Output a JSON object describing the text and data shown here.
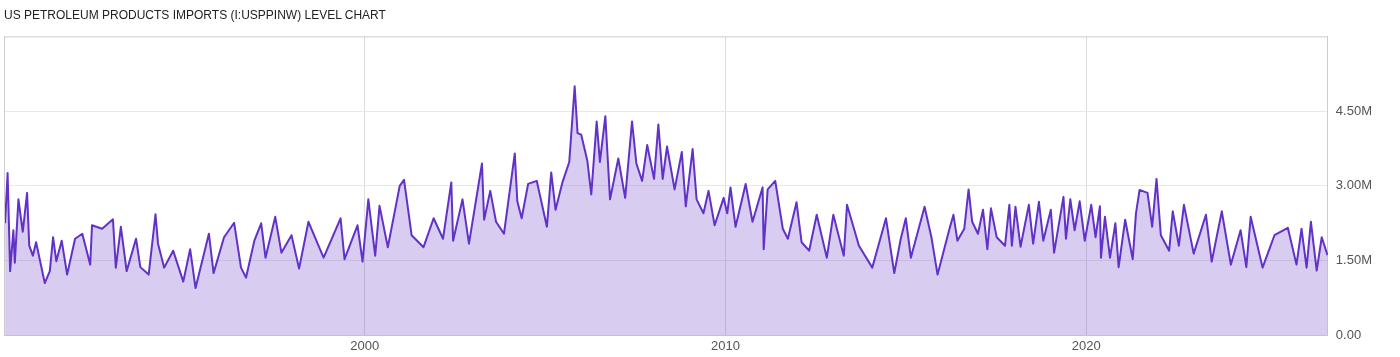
{
  "chart_data": {
    "type": "area",
    "title": "US PETROLEUM PRODUCTS IMPORTS (I:USPPINW) LEVEL CHART",
    "xlim": [
      1990,
      2026.7
    ],
    "xticks": [
      2000,
      2010,
      2020
    ],
    "ylim": [
      0,
      6.0
    ],
    "yticks": [
      {
        "value": 0,
        "label": "0.00"
      },
      {
        "value": 1.5,
        "label": "1.50M"
      },
      {
        "value": 3.0,
        "label": "3.00M"
      },
      {
        "value": 4.5,
        "label": "4.50M"
      }
    ],
    "grid": true,
    "legend": false,
    "marker": "none",
    "line_style": "solid",
    "series": [
      {
        "color": "#6232c8",
        "x": [
          1990.03,
          1990.1,
          1990.17,
          1990.26,
          1990.3,
          1990.4,
          1990.52,
          1990.64,
          1990.7,
          1990.8,
          1990.89,
          1991.13,
          1991.27,
          1991.36,
          1991.45,
          1991.6,
          1991.75,
          1991.97,
          1992.17,
          1992.39,
          1992.44,
          1992.72,
          1993.02,
          1993.1,
          1993.24,
          1993.4,
          1993.66,
          1993.78,
          1994.01,
          1994.2,
          1994.27,
          1994.44,
          1994.69,
          1994.97,
          1995.16,
          1995.31,
          1995.68,
          1995.81,
          1996.1,
          1996.38,
          1996.57,
          1996.71,
          1996.94,
          1997.13,
          1997.25,
          1997.52,
          1997.69,
          1997.97,
          1998.18,
          1998.44,
          1998.86,
          1999.33,
          1999.44,
          1999.8,
          1999.94,
          2000.1,
          2000.29,
          2000.41,
          2000.64,
          2000.97,
          2001.09,
          2001.3,
          2001.63,
          2001.91,
          2002.17,
          2002.4,
          2002.45,
          2002.71,
          2002.89,
          2003.25,
          2003.31,
          2003.48,
          2003.64,
          2003.86,
          2004.16,
          2004.23,
          2004.35,
          2004.53,
          2004.77,
          2005.05,
          2005.17,
          2005.29,
          2005.48,
          2005.67,
          2005.82,
          2005.9,
          2006.0,
          2006.17,
          2006.28,
          2006.43,
          2006.52,
          2006.67,
          2006.8,
          2007.03,
          2007.22,
          2007.41,
          2007.53,
          2007.69,
          2007.83,
          2008.02,
          2008.14,
          2008.26,
          2008.38,
          2008.59,
          2008.79,
          2008.9,
          2009.09,
          2009.2,
          2009.39,
          2009.53,
          2009.7,
          2009.95,
          2010.05,
          2010.14,
          2010.28,
          2010.56,
          2010.75,
          2011.03,
          2011.06,
          2011.17,
          2011.38,
          2011.59,
          2011.73,
          2011.97,
          2012.11,
          2012.32,
          2012.53,
          2012.81,
          2012.99,
          2013.28,
          2013.37,
          2013.7,
          2014.07,
          2014.45,
          2014.68,
          2014.86,
          2015.0,
          2015.14,
          2015.52,
          2015.71,
          2015.88,
          2016.2,
          2016.32,
          2016.43,
          2016.62,
          2016.74,
          2016.84,
          2017.0,
          2017.14,
          2017.26,
          2017.36,
          2017.52,
          2017.75,
          2017.87,
          2017.94,
          2018.04,
          2018.18,
          2018.41,
          2018.53,
          2018.69,
          2018.81,
          2019.02,
          2019.11,
          2019.37,
          2019.44,
          2019.56,
          2019.68,
          2019.82,
          2019.96,
          2020.14,
          2020.26,
          2020.38,
          2020.41,
          2020.52,
          2020.66,
          2020.81,
          2020.9,
          2021.08,
          2021.29,
          2021.38,
          2021.48,
          2021.7,
          2021.83,
          2021.95,
          2022.07,
          2022.3,
          2022.4,
          2022.57,
          2022.71,
          2022.98,
          2023.32,
          2023.48,
          2023.76,
          2024.01,
          2024.28,
          2024.44,
          2024.56,
          2024.89,
          2025.22,
          2025.59,
          2025.83,
          2025.97,
          2026.11,
          2026.23,
          2026.39,
          2026.53,
          2026.69
        ],
        "values": [
          2.25,
          3.26,
          1.29,
          2.11,
          1.46,
          2.73,
          2.08,
          2.86,
          1.8,
          1.6,
          1.87,
          1.05,
          1.29,
          1.97,
          1.49,
          1.9,
          1.22,
          1.94,
          2.04,
          1.42,
          2.21,
          2.14,
          2.33,
          1.36,
          2.18,
          1.29,
          1.94,
          1.37,
          1.22,
          2.43,
          1.84,
          1.36,
          1.7,
          1.08,
          1.73,
          0.95,
          2.04,
          1.25,
          1.97,
          2.26,
          1.36,
          1.16,
          1.9,
          2.25,
          1.56,
          2.38,
          1.66,
          2.01,
          1.34,
          2.28,
          1.56,
          2.35,
          1.53,
          2.21,
          1.48,
          2.73,
          1.6,
          2.6,
          1.77,
          3.0,
          3.12,
          2.01,
          1.77,
          2.35,
          1.94,
          3.07,
          1.9,
          2.73,
          1.84,
          3.45,
          2.32,
          2.9,
          2.28,
          2.04,
          3.65,
          2.69,
          2.35,
          3.04,
          3.1,
          2.18,
          3.27,
          2.52,
          3.07,
          3.48,
          5.0,
          4.06,
          4.03,
          3.51,
          2.83,
          4.29,
          3.48,
          4.4,
          2.73,
          3.55,
          2.76,
          4.29,
          3.45,
          3.1,
          3.82,
          3.14,
          4.23,
          3.14,
          3.79,
          2.93,
          3.68,
          2.59,
          3.74,
          2.73,
          2.45,
          2.9,
          2.21,
          2.76,
          2.45,
          2.97,
          2.18,
          3.04,
          2.28,
          2.97,
          1.73,
          2.93,
          3.1,
          2.14,
          1.94,
          2.67,
          1.87,
          1.7,
          2.42,
          1.56,
          2.42,
          1.6,
          2.62,
          1.8,
          1.36,
          2.35,
          1.25,
          1.94,
          2.35,
          1.56,
          2.58,
          1.97,
          1.22,
          2.11,
          2.42,
          1.9,
          2.14,
          2.93,
          2.28,
          2.04,
          2.52,
          1.73,
          2.55,
          1.97,
          1.8,
          2.62,
          1.8,
          2.58,
          1.78,
          2.62,
          1.84,
          2.68,
          1.9,
          2.52,
          1.66,
          2.78,
          1.94,
          2.73,
          2.11,
          2.69,
          1.9,
          2.62,
          1.97,
          2.59,
          1.56,
          2.38,
          1.56,
          2.25,
          1.37,
          2.32,
          1.53,
          2.45,
          2.92,
          2.86,
          2.18,
          3.14,
          2.01,
          1.7,
          2.49,
          1.8,
          2.62,
          1.64,
          2.42,
          1.48,
          2.49,
          1.42,
          2.11,
          1.37,
          2.38,
          1.36,
          2.01,
          2.16,
          1.42,
          2.14,
          1.36,
          2.28,
          1.3,
          1.97,
          1.61
        ]
      }
    ]
  }
}
